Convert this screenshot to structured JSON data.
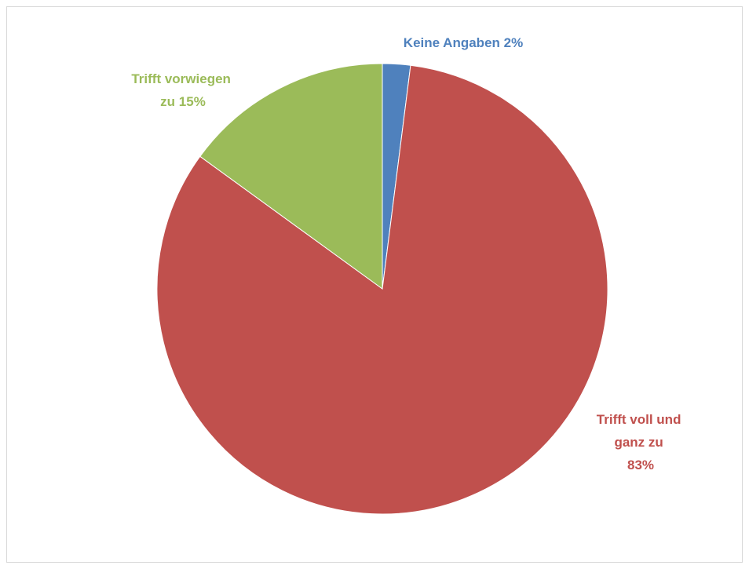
{
  "chart_data": {
    "type": "pie",
    "title": "",
    "slices": [
      {
        "label": "Keine Angaben",
        "value": 2,
        "color": "#4f81bd"
      },
      {
        "label": "Trifft voll und ganz zu",
        "value": 83,
        "color": "#c0504d"
      },
      {
        "label": "Trifft vorwiegen zu",
        "value": 15,
        "color": "#9bbb59"
      }
    ],
    "labels": {
      "keine_angaben": [
        "Keine Angaben 2%"
      ],
      "trifft_voll": [
        "Trifft voll und",
        "ganz zu",
        "83%"
      ],
      "trifft_vorwiegen": [
        "Trifft vorwiegen",
        "zu 15%"
      ]
    },
    "legend": "none"
  }
}
